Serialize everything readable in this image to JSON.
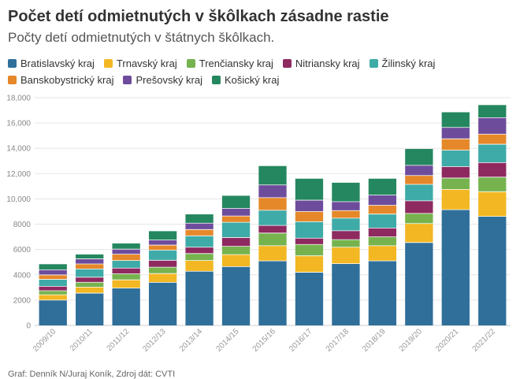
{
  "title": "Počet detí odmietnutých v škôlkach zásadne rastie",
  "subtitle": "Počty detí odmietnutých v štátnych škôlkach.",
  "source": "Graf: Denník N/Juraj Koník, Zdroj dát: CVTI",
  "chart_data": {
    "type": "bar",
    "stacked": true,
    "categories": [
      "2009/10",
      "2010/11",
      "2011/12",
      "2012/13",
      "2013/14",
      "2014/15",
      "2015/16",
      "2016/17",
      "2017/18",
      "2018/19",
      "2019/20",
      "2020/21",
      "2021/22"
    ],
    "ylim": [
      0,
      18000
    ],
    "yticks": [
      0,
      2000,
      4000,
      6000,
      8000,
      10000,
      12000,
      14000,
      16000,
      18000
    ],
    "ytick_labels": [
      "0",
      "2000",
      "4000",
      "6000",
      "8000",
      "10,000",
      "12,000",
      "14,000",
      "16,000",
      "18,000"
    ],
    "grid": true,
    "legend_position": "top",
    "series": [
      {
        "name": "Bratislavský kraj",
        "color": "#2f6f9a",
        "values": [
          2000,
          2550,
          2950,
          3400,
          4280,
          4650,
          5100,
          4200,
          4880,
          5100,
          6550,
          9150,
          8620
        ]
      },
      {
        "name": "Trnavský kraj",
        "color": "#f2b722",
        "values": [
          420,
          480,
          650,
          700,
          850,
          950,
          1200,
          1300,
          1300,
          1200,
          1500,
          1600,
          1950
        ]
      },
      {
        "name": "Trenčiansky kraj",
        "color": "#76b34f",
        "values": [
          320,
          380,
          480,
          500,
          550,
          650,
          1000,
          900,
          600,
          700,
          800,
          900,
          1150
        ]
      },
      {
        "name": "Nitriansky kraj",
        "color": "#8e2a60",
        "values": [
          350,
          400,
          450,
          550,
          500,
          700,
          600,
          500,
          700,
          700,
          1000,
          900,
          1150
        ]
      },
      {
        "name": "Žilinský kraj",
        "color": "#3eaba8",
        "values": [
          550,
          650,
          600,
          800,
          900,
          1200,
          1200,
          1300,
          1000,
          1100,
          1300,
          1300,
          1450
        ]
      },
      {
        "name": "Banskobystrický kraj",
        "color": "#e5882a",
        "values": [
          350,
          400,
          500,
          400,
          500,
          500,
          1000,
          800,
          600,
          700,
          700,
          900,
          800
        ]
      },
      {
        "name": "Prešovský kraj",
        "color": "#6e4c9c",
        "values": [
          400,
          400,
          400,
          400,
          500,
          600,
          1000,
          900,
          700,
          800,
          800,
          900,
          1300
        ]
      },
      {
        "name": "Košický kraj",
        "color": "#25875f",
        "values": [
          450,
          350,
          450,
          700,
          700,
          1000,
          1500,
          1700,
          1500,
          1300,
          1300,
          1200,
          1000
        ]
      }
    ]
  }
}
